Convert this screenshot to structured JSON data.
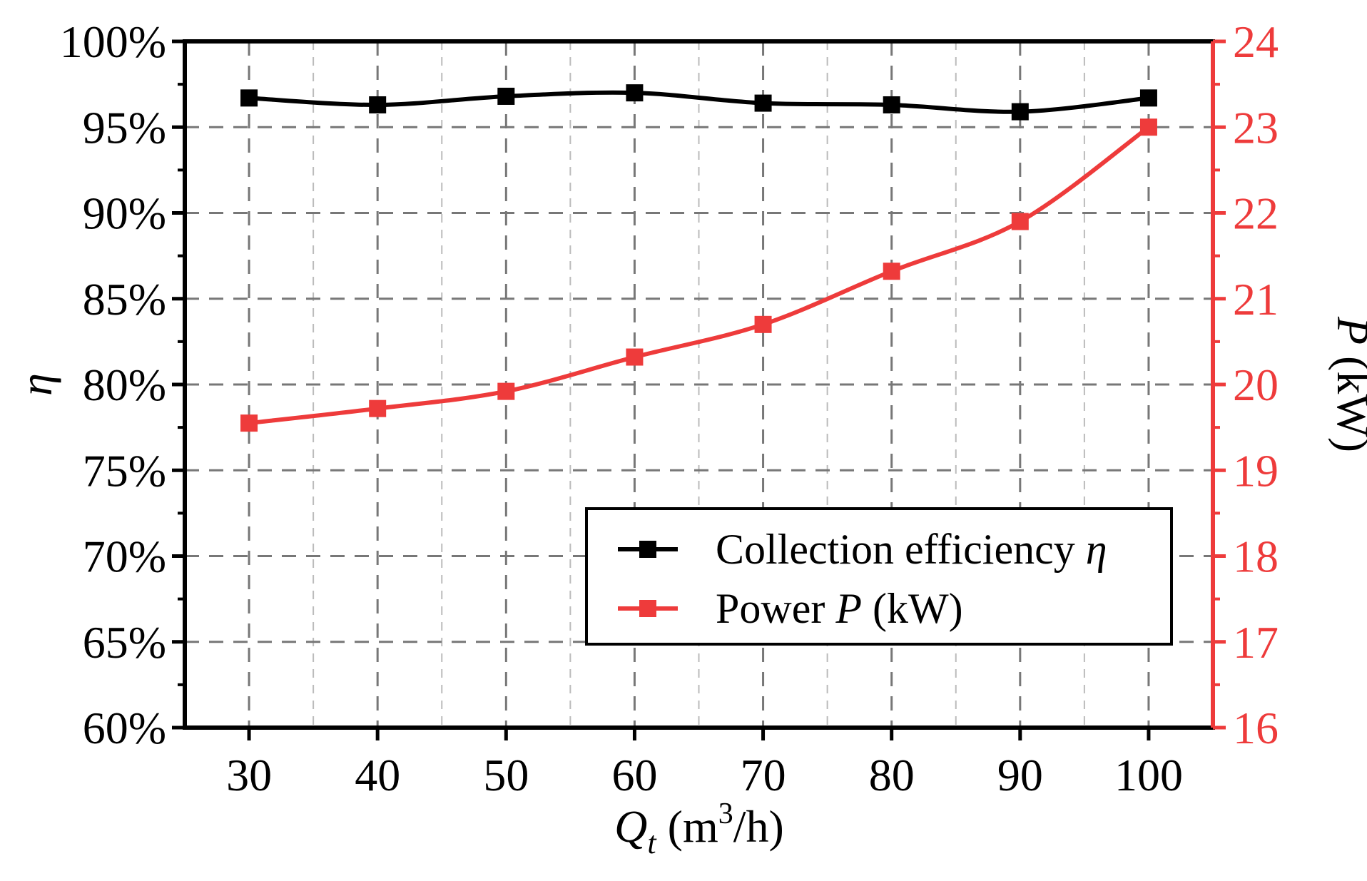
{
  "chart_data": {
    "type": "line",
    "x": [
      30,
      40,
      50,
      60,
      70,
      80,
      90,
      100
    ],
    "xlim": [
      25,
      105
    ],
    "x_ticks": [
      30,
      40,
      50,
      60,
      70,
      80,
      90,
      100
    ],
    "xlabel": {
      "symbol": "Q",
      "subscript": "t",
      "unit_open": " (m",
      "superscript": "3",
      "unit_close": "/h)"
    },
    "y_left": {
      "label": "η",
      "lim": [
        60,
        100
      ],
      "ticks": [
        60,
        65,
        70,
        75,
        80,
        85,
        90,
        95,
        100
      ],
      "tick_labels": [
        "60%",
        "65%",
        "70%",
        "75%",
        "80%",
        "85%",
        "90%",
        "95%",
        "100%"
      ]
    },
    "y_right": {
      "label_symbol": "P",
      "label_unit": " (kW)",
      "lim": [
        16,
        24
      ],
      "ticks": [
        16,
        17,
        18,
        19,
        20,
        21,
        22,
        23,
        24
      ],
      "tick_labels": [
        "16",
        "17",
        "18",
        "19",
        "20",
        "21",
        "22",
        "23",
        "24"
      ],
      "color": "#ee3b3b"
    },
    "series": [
      {
        "name": "Collection efficiency η",
        "legend_text": "Collection efficiency ",
        "legend_symbol": "η",
        "axis": "left",
        "color": "#000000",
        "marker": "square",
        "values": [
          96.7,
          96.3,
          96.8,
          97.0,
          96.4,
          96.3,
          95.9,
          96.7
        ]
      },
      {
        "name": "Power P (kW)",
        "legend_text": "Power ",
        "legend_symbol": "P",
        "legend_unit": " (kW)",
        "axis": "right",
        "color": "#ee3b3b",
        "marker": "square",
        "values": [
          19.55,
          19.72,
          19.92,
          20.32,
          20.7,
          21.32,
          21.9,
          23.0
        ]
      }
    ],
    "grid": "dashed",
    "legend_position": "lower-right"
  }
}
